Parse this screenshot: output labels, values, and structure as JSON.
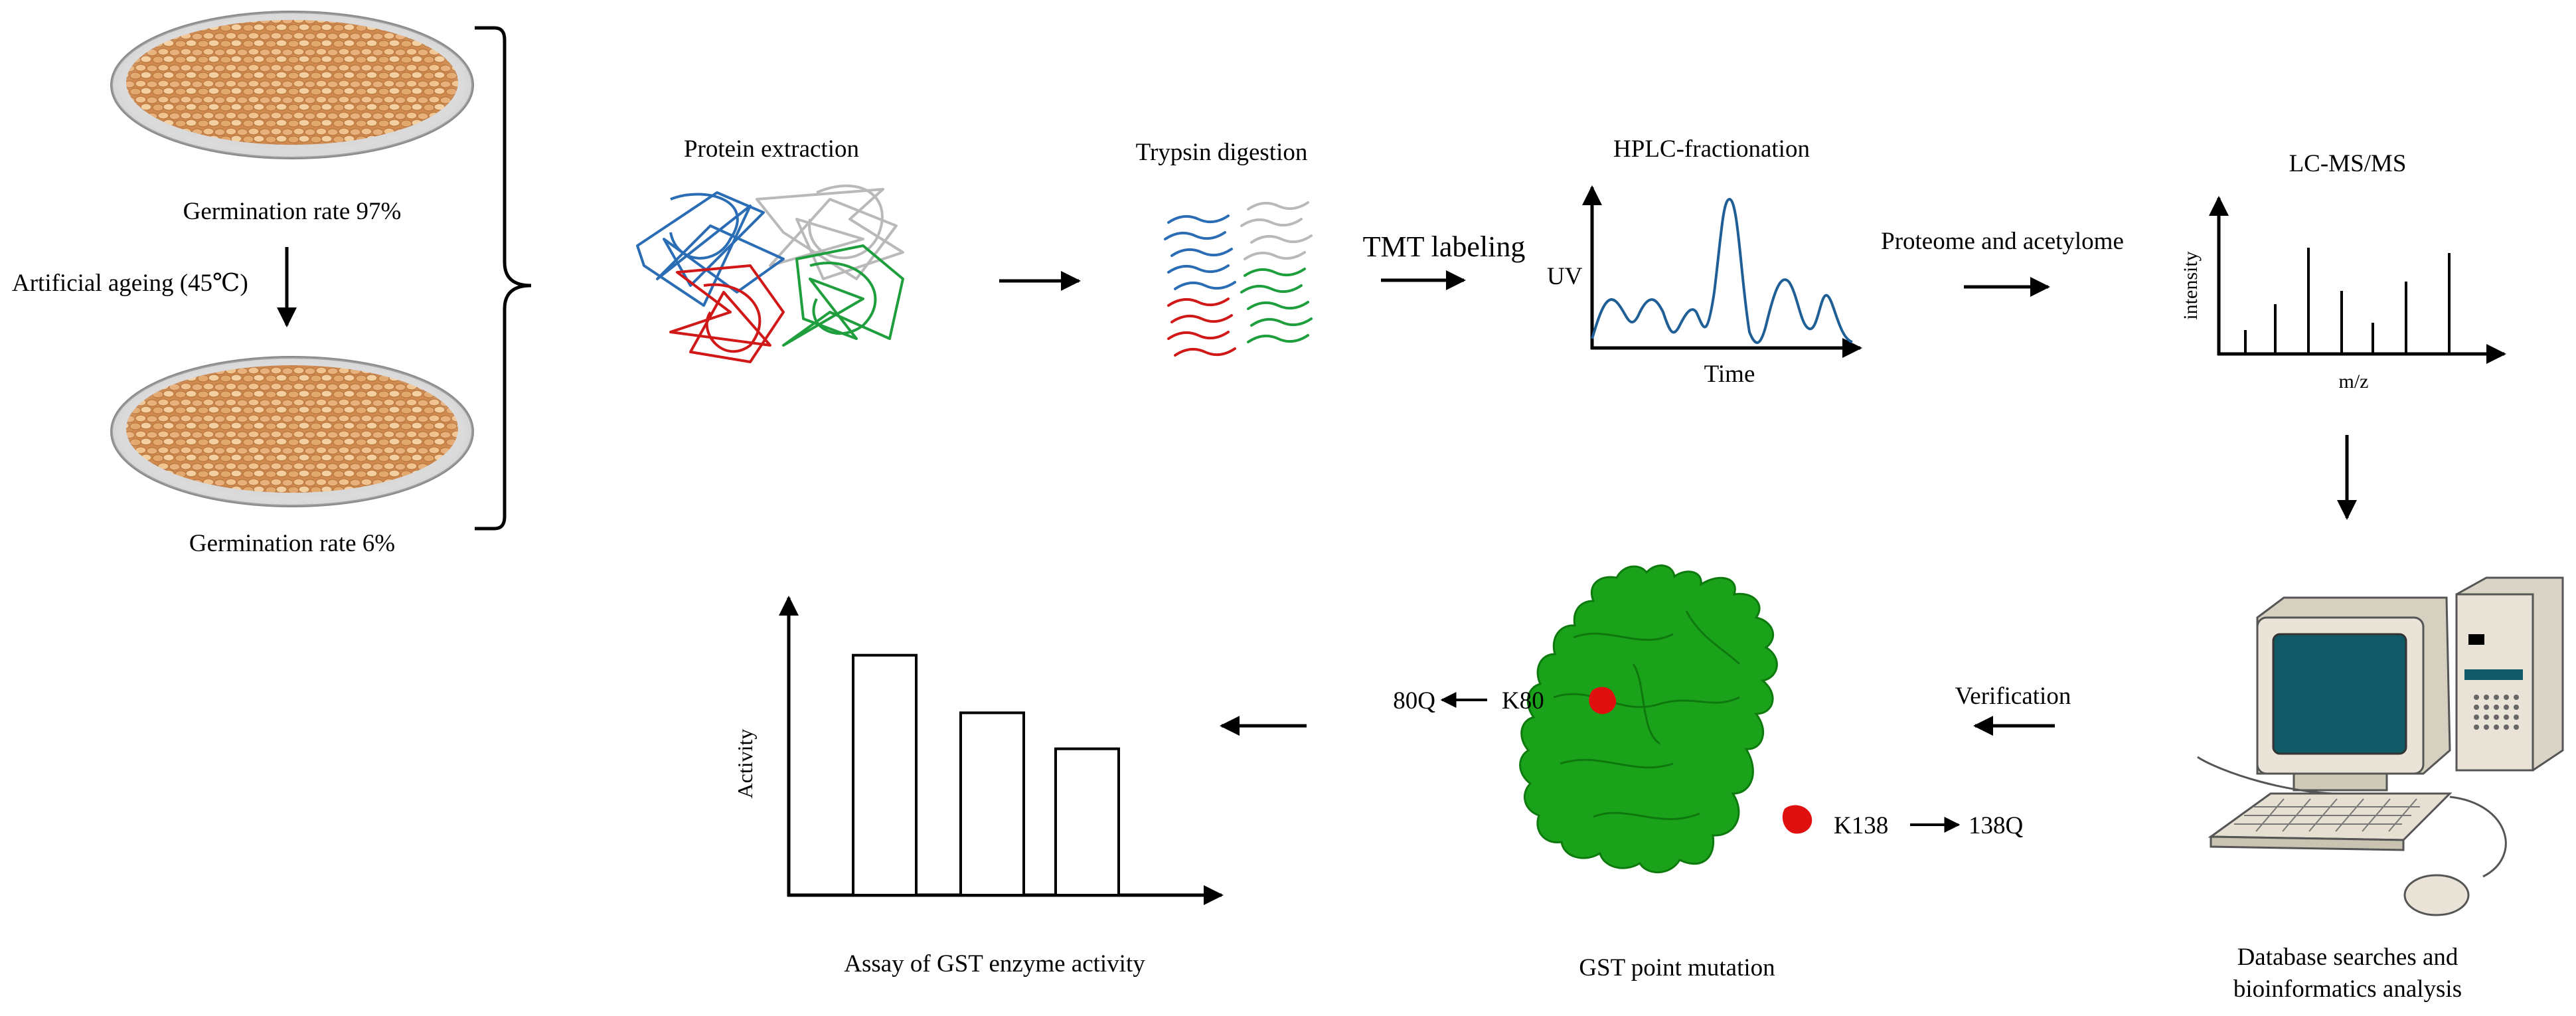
{
  "seeds": {
    "top_label": "Germination rate 97%",
    "ageing_label": "Artificial ageing (45℃)",
    "bottom_label": "Germination rate 6%"
  },
  "steps": {
    "protein_extraction": "Protein extraction",
    "trypsin_digestion": "Trypsin digestion",
    "tmt_labeling": "TMT labeling",
    "hplc": "HPLC-fractionation",
    "hplc_y": "UV",
    "hplc_x": "Time",
    "proteome": "Proteome and acetylome",
    "lcms": "LC-MS/MS",
    "lcms_y": "intensity",
    "lcms_x": "m/z",
    "database": "Database searches and",
    "database_line2": "bioinformatics analysis",
    "verification": "Verification",
    "mutation_title": "GST point mutation",
    "site1": "K80",
    "site1_mut": "80Q",
    "site2": "K138",
    "site2_mut": "138Q",
    "assay_title": "Assay of GST enzyme activity",
    "assay_y": "Activity"
  },
  "chart_data": {
    "type": "bar",
    "categories": [
      "",
      "",
      ""
    ],
    "values": [
      100,
      76,
      61
    ],
    "ylabel": "Activity",
    "xlabel": "",
    "ylim": [
      0,
      124
    ]
  },
  "colors": {
    "protein_green": "#1aa31a",
    "mutation_red": "#e01010",
    "chromatogram": "#1f5f96",
    "monitor_screen": "#0f5a66",
    "seed": "#e0a36a",
    "line_blue": "#2a6db5",
    "line_gray": "#b9b9b9",
    "line_red": "#d01818",
    "line_green": "#1e9e3c"
  }
}
